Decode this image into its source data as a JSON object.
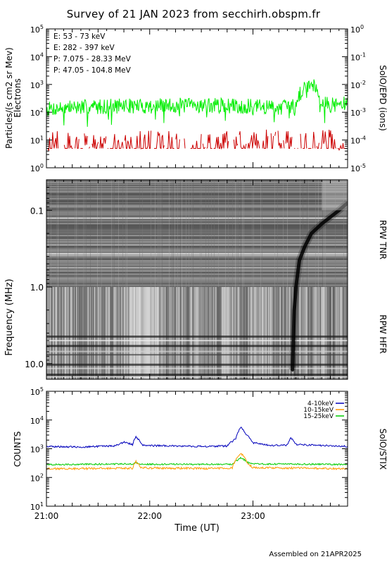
{
  "header": {
    "title": "Survey of 21 JAN 2023 from secchirh.obspm.fr"
  },
  "footer": {
    "assembled": "Assembled on 21APR2025"
  },
  "chart_data": [
    {
      "type": "line",
      "panel": "epd",
      "ylabel": "Particles/(s cm2 sr Mev)\nElectrons",
      "ylabel_right": "SolO/EPD (ions)",
      "y_scale": "log",
      "ylim": [
        1,
        100000
      ],
      "ylim_right": [
        1e-05,
        1
      ],
      "yticks": [
        "10^0",
        "10^1",
        "10^2",
        "10^3",
        "10^4",
        "10^5"
      ],
      "yticks_right": [
        "10^-5",
        "10^-4",
        "10^-3",
        "10^-2",
        "10^-1",
        "10^0"
      ],
      "xlim": [
        "21:00",
        "23:55"
      ],
      "legend_placement": "top-left",
      "series": [
        {
          "name": "E: 53 - 73 keV",
          "color": "#00ee00",
          "axis": "left",
          "x": [
            "21:00",
            "21:15",
            "21:30",
            "21:45",
            "22:00",
            "22:15",
            "22:30",
            "22:45",
            "23:00",
            "23:15",
            "23:25",
            "23:30",
            "23:33",
            "23:36",
            "23:40",
            "23:45",
            "23:55"
          ],
          "values": [
            130,
            150,
            160,
            170,
            165,
            175,
            180,
            170,
            160,
            150,
            170,
            800,
            1100,
            900,
            220,
            180,
            200
          ]
        },
        {
          "name": "E: 282 - 397 keV",
          "color": "#cc0000",
          "axis": "left",
          "x": [
            "21:00",
            "21:15",
            "21:30",
            "21:45",
            "22:00",
            "22:15",
            "22:30",
            "22:45",
            "23:00",
            "23:15",
            "23:30",
            "23:45",
            "23:55"
          ],
          "values": [
            6,
            8,
            7,
            9,
            7,
            8,
            7,
            8,
            7,
            9,
            7,
            8,
            6
          ]
        },
        {
          "name": "P: 7.075 - 28.33 MeV",
          "color": "#000000",
          "axis": "right",
          "x": [],
          "values": []
        },
        {
          "name": "P: 47.05 - 104.8 MeV",
          "color": "#0000bb",
          "axis": "right",
          "x": [],
          "values": []
        }
      ]
    },
    {
      "type": "heatmap",
      "panel": "rpw",
      "ylabel": "Frequency (MHz)",
      "y_scale": "log",
      "y_inverted": true,
      "ylim": [
        0.04,
        16
      ],
      "yticks": [
        "0.1",
        "1.0",
        "10.0"
      ],
      "band_labels": [
        "RPW TNR",
        "RPW HFR"
      ],
      "xlim": [
        "21:00",
        "23:55"
      ],
      "colormap": "grayscale",
      "features": [
        {
          "kind": "type III burst",
          "drift": [
            {
              "time": "23:23",
              "freq": 12.0
            },
            {
              "time": "23:24",
              "freq": 2.0
            },
            {
              "time": "23:25",
              "freq": 1.0
            },
            {
              "time": "23:27",
              "freq": 0.45
            },
            {
              "time": "23:30",
              "freq": 0.3
            },
            {
              "time": "23:34",
              "freq": 0.2
            },
            {
              "time": "23:40",
              "freq": 0.15
            },
            {
              "time": "23:50",
              "freq": 0.1
            },
            {
              "time": "23:55",
              "freq": 0.08
            }
          ]
        }
      ]
    },
    {
      "type": "line",
      "panel": "stix",
      "ylabel": "COUNTS",
      "ylabel_right": "SolO/STIX",
      "xlabel": "Time (UT)",
      "y_scale": "log",
      "ylim": [
        10,
        100000
      ],
      "yticks": [
        "10^1",
        "10^2",
        "10^3",
        "10^4",
        "10^5"
      ],
      "xlim": [
        "21:00",
        "23:55"
      ],
      "xticks": [
        "21:00",
        "22:00",
        "23:00"
      ],
      "legend_placement": "top-right",
      "series": [
        {
          "name": "4-10keV",
          "color": "#0000bb",
          "x": [
            "21:00",
            "21:20",
            "21:40",
            "21:45",
            "21:50",
            "21:52",
            "21:56",
            "22:30",
            "22:45",
            "22:50",
            "22:53",
            "22:56",
            "23:00",
            "23:10",
            "23:20",
            "23:22",
            "23:25",
            "23:40",
            "23:55"
          ],
          "values": [
            1200,
            1150,
            1250,
            1700,
            1400,
            2600,
            1300,
            1200,
            1250,
            2200,
            5500,
            3200,
            1600,
            1300,
            1350,
            2400,
            1400,
            1300,
            1200
          ]
        },
        {
          "name": "10-15keV",
          "color": "#ff9900",
          "x": [
            "21:00",
            "21:30",
            "21:50",
            "21:52",
            "21:55",
            "22:30",
            "22:48",
            "22:53",
            "22:57",
            "23:00",
            "23:30",
            "23:55"
          ],
          "values": [
            200,
            205,
            210,
            360,
            215,
            205,
            210,
            700,
            300,
            220,
            210,
            200
          ]
        },
        {
          "name": "15-25keV",
          "color": "#00cc00",
          "x": [
            "21:00",
            "21:30",
            "21:50",
            "21:52",
            "21:55",
            "22:30",
            "22:48",
            "22:53",
            "22:57",
            "23:00",
            "23:30",
            "23:55"
          ],
          "values": [
            280,
            290,
            295,
            340,
            290,
            285,
            290,
            480,
            330,
            295,
            290,
            285
          ]
        }
      ]
    }
  ]
}
